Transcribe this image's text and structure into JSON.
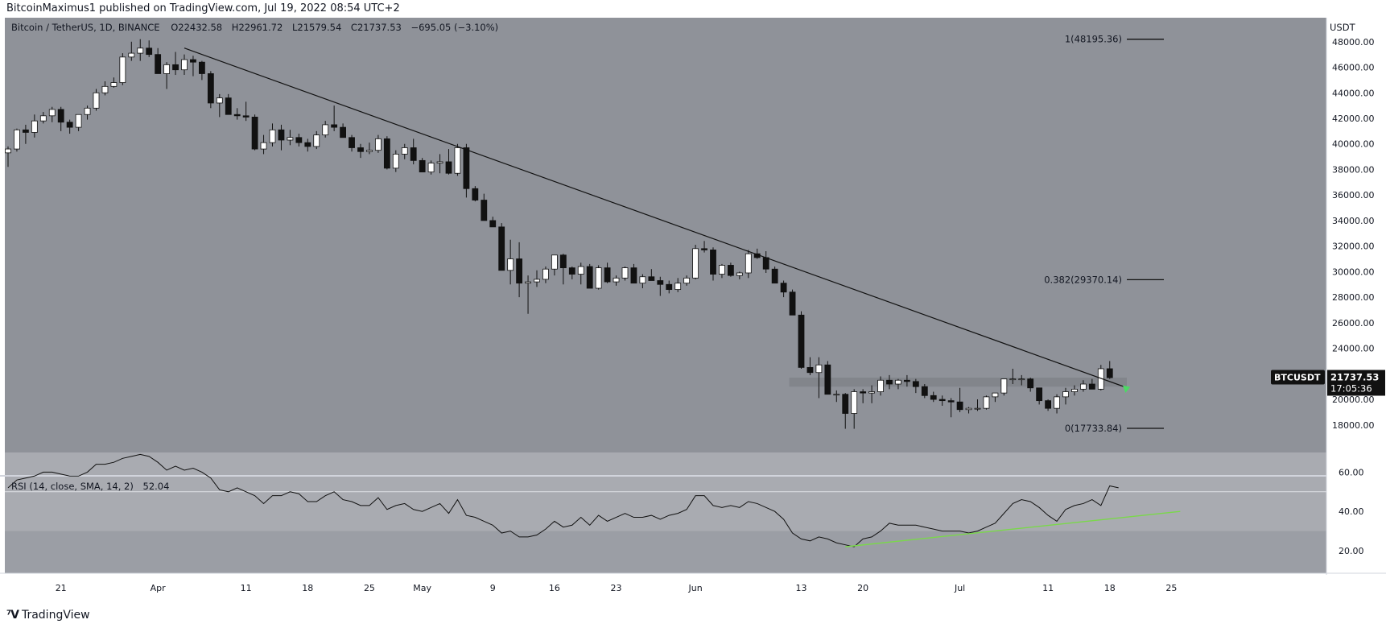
{
  "header": {
    "published_by": "BitcoinMaximus1 published on TradingView.com, Jul 19, 2022 08:54 UTC+2"
  },
  "symbol_line": {
    "name": "Bitcoin / TetherUS, 1D, BINANCE",
    "o_label": "O",
    "o_value": "22432.58",
    "h_label": "H",
    "h_value": "22961.72",
    "l_label": "L",
    "l_value": "21579.54",
    "c_label": "C",
    "c_value": "21737.53",
    "change": "−695.05 (−3.10%)"
  },
  "price_axis": {
    "currency": "USDT",
    "ticks": [
      "48000.00",
      "46000.00",
      "44000.00",
      "42000.00",
      "40000.00",
      "38000.00",
      "36000.00",
      "34000.00",
      "32000.00",
      "30000.00",
      "28000.00",
      "26000.00",
      "24000.00",
      "20000.00",
      "18000.00"
    ],
    "last_symbol": "BTCUSDT",
    "last_price": "21737.53",
    "countdown": "17:05:36"
  },
  "fib_levels": [
    {
      "label": "1(48195.36)",
      "price": 48195.36
    },
    {
      "label": "0.382(29370.14)",
      "price": 29370.14
    },
    {
      "label": "0(17733.84)",
      "price": 17733.84
    }
  ],
  "rsi": {
    "title": "RSI (14, close, SMA, 14, 2)",
    "value": "52.04",
    "ticks": [
      "60.00",
      "40.00",
      "20.00"
    ]
  },
  "time_axis": {
    "labels": [
      "21",
      "Apr",
      "11",
      "18",
      "25",
      "May",
      "9",
      "16",
      "23",
      "Jun",
      "13",
      "20",
      "Jul",
      "11",
      "18",
      "25"
    ]
  },
  "footer": {
    "brand": "TradingView"
  },
  "colors": {
    "background": "#ffffff",
    "pane_price": "#8f9299",
    "pane_rsi": "#9b9ea5",
    "rsi_band": "#a9abb1",
    "candle_up": "#ffffff",
    "candle_down": "#111111",
    "support_zone": "#7d8087",
    "rsi_trend": "#7ad84a",
    "arrow": "#4cd964"
  },
  "chart_data": {
    "type": "candlestick",
    "title": "Bitcoin / TetherUS, 1D, BINANCE",
    "ylim": [
      16600,
      49500
    ],
    "x_start": "2022-03-15",
    "candles_ohlc": [
      [
        39300,
        39800,
        38200,
        39600
      ],
      [
        39600,
        41200,
        39400,
        41100
      ],
      [
        41100,
        41500,
        40000,
        40900
      ],
      [
        40900,
        42300,
        40500,
        41800
      ],
      [
        41800,
        42500,
        41600,
        42200
      ],
      [
        42200,
        42900,
        41700,
        42700
      ],
      [
        42700,
        42900,
        41000,
        41700
      ],
      [
        41700,
        41900,
        40800,
        41300
      ],
      [
        41300,
        42300,
        41000,
        42300
      ],
      [
        42300,
        43000,
        41900,
        42800
      ],
      [
        42800,
        44300,
        42600,
        44000
      ],
      [
        44000,
        44900,
        43800,
        44500
      ],
      [
        44500,
        45200,
        44400,
        44800
      ],
      [
        44800,
        47100,
        44600,
        46800
      ],
      [
        46800,
        48000,
        46500,
        47100
      ],
      [
        47100,
        48200,
        46500,
        47500
      ],
      [
        47500,
        48100,
        46800,
        47000
      ],
      [
        47000,
        47500,
        45600,
        45500
      ],
      [
        45500,
        46400,
        44300,
        46200
      ],
      [
        46200,
        47200,
        45400,
        45800
      ],
      [
        45800,
        47000,
        45400,
        46600
      ],
      [
        46600,
        46900,
        45300,
        46400
      ],
      [
        46400,
        46500,
        45000,
        45500
      ],
      [
        45500,
        45700,
        42800,
        43200
      ],
      [
        43200,
        43900,
        42100,
        43600
      ],
      [
        43600,
        43900,
        42700,
        42300
      ],
      [
        42300,
        42800,
        41900,
        42200
      ],
      [
        42200,
        43300,
        41800,
        42100
      ],
      [
        42100,
        42300,
        39500,
        39600
      ],
      [
        39600,
        40700,
        39200,
        40100
      ],
      [
        40100,
        41600,
        39800,
        41100
      ],
      [
        41100,
        41500,
        39500,
        40300
      ],
      [
        40300,
        41100,
        39900,
        40500
      ],
      [
        40500,
        40800,
        39800,
        40100
      ],
      [
        40100,
        40400,
        39400,
        39800
      ],
      [
        39800,
        41000,
        39600,
        40700
      ],
      [
        40700,
        41800,
        40500,
        41500
      ],
      [
        41500,
        43000,
        41000,
        41300
      ],
      [
        41300,
        41600,
        40500,
        40500
      ],
      [
        40500,
        40700,
        39400,
        39700
      ],
      [
        39700,
        40000,
        38900,
        39400
      ],
      [
        39400,
        40100,
        39200,
        39500
      ],
      [
        39500,
        40700,
        39300,
        40400
      ],
      [
        40400,
        40600,
        38000,
        38100
      ],
      [
        38100,
        39500,
        37800,
        39200
      ],
      [
        39200,
        40000,
        38800,
        39700
      ],
      [
        39700,
        40400,
        38400,
        38700
      ],
      [
        38700,
        38900,
        37800,
        37800
      ],
      [
        37800,
        38700,
        37600,
        38500
      ],
      [
        38500,
        39200,
        37700,
        38600
      ],
      [
        38600,
        39600,
        37600,
        37700
      ],
      [
        37700,
        40000,
        37500,
        39700
      ],
      [
        39700,
        40000,
        35800,
        36500
      ],
      [
        36500,
        36700,
        35500,
        35600
      ],
      [
        35600,
        36100,
        34800,
        34000
      ],
      [
        34000,
        34300,
        33700,
        33500
      ],
      [
        33500,
        33800,
        31000,
        30100
      ],
      [
        30100,
        32500,
        29000,
        31000
      ],
      [
        31000,
        32300,
        28000,
        29100
      ],
      [
        29100,
        29700,
        26700,
        29200
      ],
      [
        29200,
        30100,
        28800,
        29400
      ],
      [
        29400,
        30400,
        29100,
        30200
      ],
      [
        30200,
        31300,
        29700,
        31300
      ],
      [
        31300,
        31400,
        29000,
        30300
      ],
      [
        30300,
        30400,
        29400,
        29800
      ],
      [
        29800,
        30700,
        29000,
        30400
      ],
      [
        30400,
        30600,
        28700,
        28700
      ],
      [
        28700,
        30500,
        28600,
        30300
      ],
      [
        30300,
        30700,
        29100,
        29200
      ],
      [
        29200,
        29700,
        28900,
        29500
      ],
      [
        29500,
        30400,
        29300,
        30300
      ],
      [
        30300,
        30600,
        29200,
        29100
      ],
      [
        29100,
        29800,
        28700,
        29600
      ],
      [
        29600,
        30200,
        29400,
        29300
      ],
      [
        29300,
        29600,
        28100,
        29000
      ],
      [
        29000,
        29300,
        28300,
        28600
      ],
      [
        28600,
        29500,
        28400,
        29100
      ],
      [
        29100,
        29700,
        28900,
        29500
      ],
      [
        29500,
        32100,
        29400,
        31800
      ],
      [
        31800,
        32400,
        31500,
        31700
      ],
      [
        31700,
        31900,
        29300,
        29800
      ],
      [
        29800,
        30600,
        29500,
        30500
      ],
      [
        30500,
        30700,
        29600,
        29700
      ],
      [
        29700,
        30000,
        29400,
        29900
      ],
      [
        29900,
        31700,
        29500,
        31400
      ],
      [
        31400,
        31800,
        31000,
        31100
      ],
      [
        31100,
        31600,
        29900,
        30200
      ],
      [
        30200,
        30400,
        29100,
        29100
      ],
      [
        29100,
        29300,
        28000,
        28400
      ],
      [
        28400,
        28600,
        26600,
        26600
      ],
      [
        26600,
        26900,
        22400,
        22500
      ],
      [
        22500,
        23300,
        21900,
        22100
      ],
      [
        22100,
        23300,
        20100,
        22700
      ],
      [
        22700,
        23000,
        20500,
        20400
      ],
      [
        20400,
        20700,
        19800,
        20400
      ],
      [
        20400,
        20500,
        17700,
        18900
      ],
      [
        18900,
        20800,
        17700,
        20600
      ],
      [
        20600,
        20800,
        19700,
        20500
      ],
      [
        20500,
        21100,
        19700,
        20600
      ],
      [
        20600,
        21800,
        20300,
        21500
      ],
      [
        21500,
        21900,
        20800,
        21200
      ],
      [
        21200,
        21600,
        20800,
        21500
      ],
      [
        21500,
        21900,
        21000,
        21400
      ],
      [
        21400,
        21600,
        20500,
        21000
      ],
      [
        21000,
        21200,
        20100,
        20300
      ],
      [
        20300,
        20600,
        19800,
        20000
      ],
      [
        20000,
        20300,
        19500,
        19900
      ],
      [
        19900,
        20100,
        18600,
        19800
      ],
      [
        19800,
        20900,
        19000,
        19200
      ],
      [
        19200,
        19400,
        18900,
        19300
      ],
      [
        19300,
        20000,
        19100,
        19300
      ],
      [
        19300,
        20300,
        19200,
        20200
      ],
      [
        20200,
        20500,
        19800,
        20500
      ],
      [
        20500,
        21600,
        20300,
        21600
      ],
      [
        21600,
        22400,
        21200,
        21600
      ],
      [
        21600,
        21900,
        21100,
        21600
      ],
      [
        21600,
        21700,
        20600,
        20900
      ],
      [
        20900,
        20900,
        19600,
        19900
      ],
      [
        19900,
        20000,
        19100,
        19300
      ],
      [
        19300,
        20400,
        18900,
        20200
      ],
      [
        20200,
        20900,
        19600,
        20600
      ],
      [
        20600,
        21100,
        20300,
        20800
      ],
      [
        20800,
        21500,
        20600,
        21200
      ],
      [
        21200,
        21600,
        20800,
        20800
      ],
      [
        20800,
        22700,
        20700,
        22400
      ],
      [
        22400,
        23000,
        21600,
        21700
      ]
    ],
    "trendline": {
      "from": [
        "2022-04-04",
        47500
      ],
      "to": [
        "2022-07-20",
        20900
      ]
    },
    "support_zone": [
      21000,
      21700
    ],
    "rsi": {
      "title": "RSI (14, close, SMA, 14, 2)",
      "ylim": [
        20,
        70
      ],
      "band": [
        30,
        70
      ],
      "midline": 50,
      "values": [
        52,
        56,
        57,
        58,
        60,
        60,
        59,
        58,
        58,
        60,
        64,
        64,
        65,
        67,
        68,
        69,
        68,
        65,
        61,
        63,
        61,
        62,
        60,
        57,
        51,
        50,
        52,
        50,
        48,
        44,
        48,
        48,
        50,
        49,
        45,
        45,
        48,
        50,
        46,
        45,
        43,
        43,
        47,
        41,
        43,
        44,
        41,
        40,
        42,
        44,
        39,
        46,
        38,
        37,
        35,
        33,
        29,
        30,
        27,
        27,
        28,
        31,
        35,
        32,
        33,
        37,
        33,
        38,
        35,
        37,
        39,
        37,
        37,
        38,
        36,
        38,
        39,
        41,
        48,
        48,
        43,
        42,
        43,
        42,
        45,
        44,
        42,
        40,
        36,
        29,
        26,
        25,
        27,
        26,
        24,
        23,
        22,
        26,
        27,
        30,
        34,
        33,
        33,
        33,
        32,
        31,
        30,
        30,
        30,
        29,
        30,
        32,
        34,
        39,
        44,
        46,
        45,
        42,
        38,
        35,
        41,
        43,
        44,
        46,
        43,
        53,
        52
      ],
      "trend": {
        "from": [
          "2022-06-18",
          22
        ],
        "to": [
          "2022-07-26",
          40
        ]
      }
    },
    "fib": [
      48195.36,
      29370.14,
      17733.84
    ]
  }
}
